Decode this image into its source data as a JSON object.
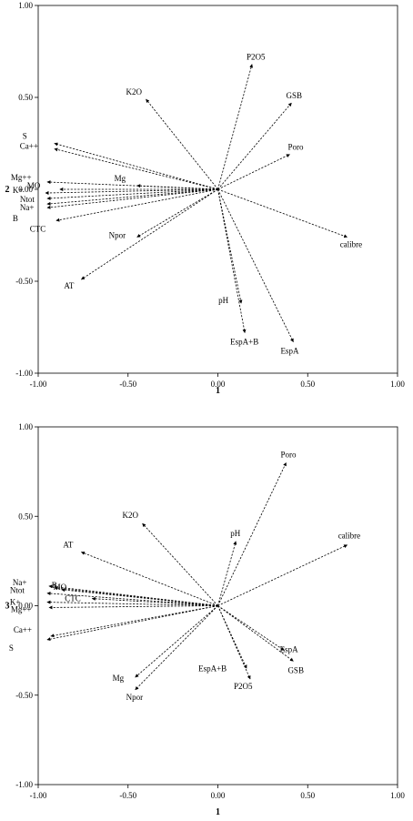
{
  "chart_data": [
    {
      "type": "scatter",
      "title": "",
      "xlabel": "1",
      "ylabel": "2",
      "xlim": [
        -1.0,
        1.0
      ],
      "ylim": [
        -1.0,
        1.0
      ],
      "xticks": [
        "-1.00",
        "-0.50",
        "0.00",
        "0.50",
        "1.00"
      ],
      "yticks": [
        "-1.00",
        "-0.50",
        "0.00",
        "0.50",
        "1.00"
      ],
      "grid": false,
      "vectors": [
        {
          "name": "P2O5",
          "x": 0.19,
          "y": 0.68
        },
        {
          "name": "K2O",
          "x": -0.4,
          "y": 0.49
        },
        {
          "name": "GSB",
          "x": 0.41,
          "y": 0.47
        },
        {
          "name": "Poro",
          "x": 0.4,
          "y": 0.19
        },
        {
          "name": "S",
          "x": -0.91,
          "y": 0.25
        },
        {
          "name": "Ca++",
          "x": -0.91,
          "y": 0.22
        },
        {
          "name": "Mg++",
          "x": -0.95,
          "y": 0.04
        },
        {
          "name": "K+",
          "x": -0.96,
          "y": -0.02
        },
        {
          "name": "MO",
          "x": -0.88,
          "y": 0.0
        },
        {
          "name": "Ntot",
          "x": -0.95,
          "y": -0.05
        },
        {
          "name": "Mg",
          "x": -0.45,
          "y": 0.02
        },
        {
          "name": "Na+",
          "x": -0.95,
          "y": -0.08
        },
        {
          "name": "B",
          "x": -0.95,
          "y": -0.1
        },
        {
          "name": "CTC",
          "x": -0.9,
          "y": -0.17
        },
        {
          "name": "Npor",
          "x": -0.45,
          "y": -0.26
        },
        {
          "name": "calibre",
          "x": 0.72,
          "y": -0.26
        },
        {
          "name": "AT",
          "x": -0.76,
          "y": -0.49
        },
        {
          "name": "pH",
          "x": 0.13,
          "y": -0.62
        },
        {
          "name": "EspA+B",
          "x": 0.15,
          "y": -0.78
        },
        {
          "name": "EspA",
          "x": 0.42,
          "y": -0.83
        }
      ]
    },
    {
      "type": "scatter",
      "title": "",
      "xlabel": "1",
      "ylabel": "3",
      "xlim": [
        -1.0,
        1.0
      ],
      "ylim": [
        -1.0,
        1.0
      ],
      "xticks": [
        "-1.00",
        "-0.50",
        "0.00",
        "0.50",
        "1.00"
      ],
      "yticks": [
        "-1.00",
        "-0.50",
        "0.00",
        "0.50",
        "1.00"
      ],
      "grid": false,
      "vectors": [
        {
          "name": "Poro",
          "x": 0.38,
          "y": 0.8
        },
        {
          "name": "K2O",
          "x": -0.42,
          "y": 0.46
        },
        {
          "name": "calibre",
          "x": 0.72,
          "y": 0.34
        },
        {
          "name": "pH",
          "x": 0.1,
          "y": 0.36
        },
        {
          "name": "AT",
          "x": -0.76,
          "y": 0.3
        },
        {
          "name": "Na+",
          "x": -0.94,
          "y": 0.11
        },
        {
          "name": "B",
          "x": -0.91,
          "y": 0.1
        },
        {
          "name": "Ntot",
          "x": -0.95,
          "y": 0.07
        },
        {
          "name": "MO",
          "x": -0.87,
          "y": 0.09
        },
        {
          "name": "K+",
          "x": -0.95,
          "y": 0.02
        },
        {
          "name": "Mg++",
          "x": -0.94,
          "y": -0.01
        },
        {
          "name": "CTC",
          "x": -0.7,
          "y": 0.04
        },
        {
          "name": "Ca++",
          "x": -0.93,
          "y": -0.17
        },
        {
          "name": "S",
          "x": -0.95,
          "y": -0.19
        },
        {
          "name": "EspA",
          "x": 0.37,
          "y": -0.25
        },
        {
          "name": "GSB",
          "x": 0.42,
          "y": -0.31
        },
        {
          "name": "EspA+B",
          "x": 0.16,
          "y": -0.35
        },
        {
          "name": "P2O5",
          "x": 0.18,
          "y": -0.41
        },
        {
          "name": "Mg",
          "x": -0.46,
          "y": -0.4
        },
        {
          "name": "Npor",
          "x": -0.46,
          "y": -0.47
        }
      ]
    }
  ]
}
